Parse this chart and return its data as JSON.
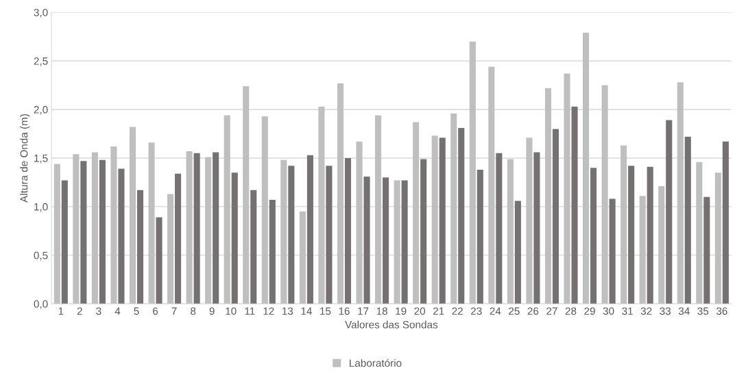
{
  "chart_data": {
    "type": "bar",
    "xlabel": "Valores das Sondas",
    "ylabel": "Altura de Onda (m)",
    "categories": [
      "1",
      "2",
      "3",
      "4",
      "5",
      "6",
      "7",
      "8",
      "9",
      "10",
      "11",
      "12",
      "13",
      "14",
      "15",
      "16",
      "17",
      "18",
      "19",
      "20",
      "21",
      "22",
      "23",
      "24",
      "25",
      "26",
      "27",
      "28",
      "29",
      "30",
      "31",
      "32",
      "33",
      "34",
      "35",
      "36"
    ],
    "series": [
      {
        "name": "Laboratório",
        "color": "#bfbfbf",
        "values": [
          1.44,
          1.54,
          1.56,
          1.62,
          1.82,
          1.66,
          1.13,
          1.57,
          1.51,
          1.94,
          2.24,
          1.93,
          1.48,
          0.95,
          2.03,
          2.27,
          1.67,
          1.94,
          1.27,
          1.87,
          1.73,
          1.96,
          2.7,
          2.44,
          1.49,
          1.71,
          2.22,
          2.37,
          2.79,
          2.25,
          1.63,
          1.11,
          1.21,
          2.28,
          1.46,
          1.35
        ]
      },
      {
        "color": "#767171",
        "values": [
          1.27,
          1.47,
          1.48,
          1.39,
          1.17,
          0.89,
          1.34,
          1.55,
          1.56,
          1.35,
          1.17,
          1.07,
          1.42,
          1.53,
          1.42,
          1.5,
          1.31,
          1.3,
          1.27,
          1.49,
          1.71,
          1.81,
          1.38,
          1.55,
          1.06,
          1.56,
          1.8,
          2.03,
          1.4,
          1.08,
          1.42,
          1.41,
          1.89,
          1.72,
          1.1,
          1.67
        ]
      }
    ],
    "ylim": [
      0,
      3.0
    ],
    "yticks": [
      {
        "value": 0,
        "label": "0,0"
      },
      {
        "value": 0.5,
        "label": "0,5"
      },
      {
        "value": 1.0,
        "label": "1,0"
      },
      {
        "value": 1.5,
        "label": "1,5"
      },
      {
        "value": 2.0,
        "label": "2,0"
      },
      {
        "value": 2.5,
        "label": "2,5"
      },
      {
        "value": 3.0,
        "label": "3,0"
      }
    ],
    "grid": "y",
    "legend": "bottom"
  }
}
